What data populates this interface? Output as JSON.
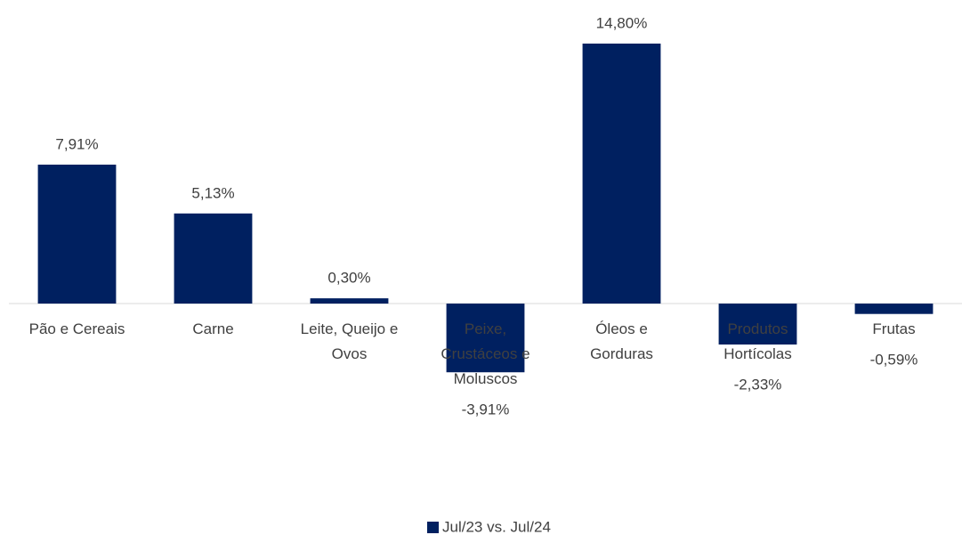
{
  "chart_data": {
    "type": "bar",
    "categories": [
      "Pão e Cereais",
      "Carne",
      "Leite, Queijo e Ovos",
      "Peixe, Crustáceos e Moluscos",
      "Óleos e Gorduras",
      "Produtos Hortícolas",
      "Frutas"
    ],
    "series": [
      {
        "name": "Jul/23 vs. Jul/24",
        "color": "#002060",
        "values": [
          7.91,
          5.13,
          0.3,
          -3.91,
          14.8,
          -2.33,
          -0.59
        ],
        "value_labels": [
          "7,91%",
          "5,13%",
          "0,30%",
          "-3,91%",
          "14,80%",
          "-2,33%",
          "-0,59%"
        ]
      }
    ],
    "ylim": [
      -4,
      15
    ],
    "legend": "bottom"
  }
}
